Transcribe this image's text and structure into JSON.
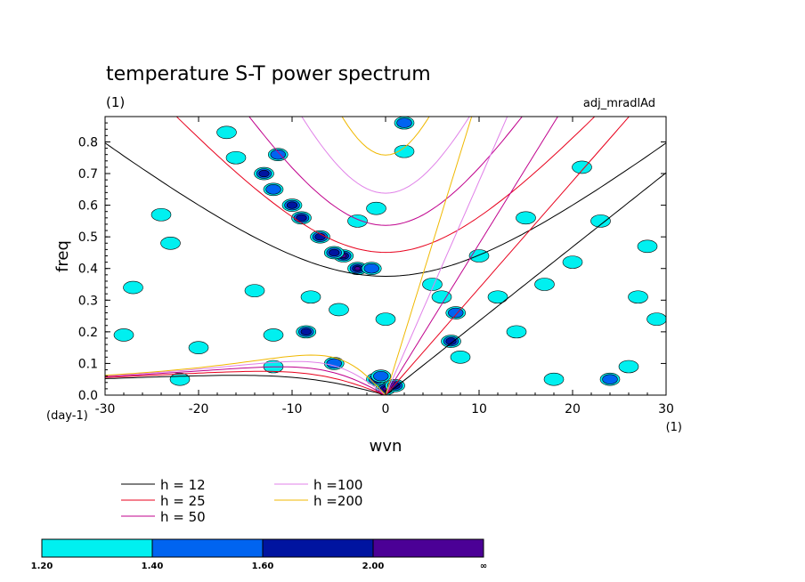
{
  "chart_data": {
    "type": "contour",
    "title": "temperature S-T power spectrum",
    "subtitle_left": "(1)",
    "subtitle_right": "adj_mradlAd",
    "xlabel": "wvn",
    "ylabel": "freq",
    "x_unit": "(1)",
    "y_unit": "(day-1)",
    "xlim": [
      -30,
      30
    ],
    "ylim": [
      0,
      0.88
    ],
    "x_ticks": [
      -30,
      -20,
      -10,
      0,
      10,
      20,
      30
    ],
    "x_tick_labels": [
      "-30",
      "-20",
      "-10",
      "0",
      "10",
      "20",
      "30"
    ],
    "y_ticks": [
      0,
      0.1,
      0.2,
      0.3,
      0.4,
      0.5,
      0.6,
      0.7,
      0.8
    ],
    "y_tick_labels": [
      "0.0",
      "0.1",
      "0.2",
      "0.3",
      "0.4",
      "0.5",
      "0.6",
      "0.7",
      "0.8"
    ],
    "dispersion_curves": [
      {
        "label": "h = 12",
        "h": 12,
        "color": "#000000"
      },
      {
        "label": "h = 25",
        "h": 25,
        "color": "#e8001c"
      },
      {
        "label": "h = 50",
        "h": 50,
        "color": "#c0008c"
      },
      {
        "label": "h =100",
        "h": 100,
        "color": "#e080e8"
      },
      {
        "label": "h =200",
        "h": 200,
        "color": "#f0b800"
      }
    ],
    "colorbar": {
      "levels": [
        "1.20",
        "1.40",
        "1.60",
        "2.00",
        "∞"
      ],
      "colors": [
        "#00f0f0",
        "#0064f0",
        "#0014a0",
        "#4b0096"
      ]
    },
    "contour_blobs": [
      {
        "x": 0,
        "y": 0.02,
        "level": 3
      },
      {
        "x": -1,
        "y": 0.05,
        "level": 2
      },
      {
        "x": 1,
        "y": 0.03,
        "level": 2
      },
      {
        "x": -3,
        "y": 0.4,
        "level": 3
      },
      {
        "x": -4.5,
        "y": 0.44,
        "level": 3
      },
      {
        "x": -5.5,
        "y": 0.45,
        "level": 2
      },
      {
        "x": -7,
        "y": 0.5,
        "level": 2
      },
      {
        "x": -9,
        "y": 0.56,
        "level": 2
      },
      {
        "x": -10,
        "y": 0.6,
        "level": 2
      },
      {
        "x": -12,
        "y": 0.65,
        "level": 1
      },
      {
        "x": -13,
        "y": 0.7,
        "level": 2
      },
      {
        "x": -11.5,
        "y": 0.76,
        "level": 1
      },
      {
        "x": -8.5,
        "y": 0.2,
        "level": 2
      },
      {
        "x": -5.5,
        "y": 0.1,
        "level": 1
      },
      {
        "x": 7,
        "y": 0.17,
        "level": 2
      },
      {
        "x": 7.5,
        "y": 0.26,
        "level": 1
      },
      {
        "x": 2,
        "y": 0.86,
        "level": 1
      },
      {
        "x": -1.5,
        "y": 0.4,
        "level": 1
      },
      {
        "x": -0.5,
        "y": 0.06,
        "level": 1
      },
      {
        "x": -8,
        "y": 0.31,
        "level": 0
      },
      {
        "x": -14,
        "y": 0.33,
        "level": 0
      },
      {
        "x": -16,
        "y": 0.75,
        "level": 0
      },
      {
        "x": -17,
        "y": 0.83,
        "level": 0
      },
      {
        "x": -23,
        "y": 0.48,
        "level": 0
      },
      {
        "x": -28,
        "y": 0.19,
        "level": 0
      },
      {
        "x": -24,
        "y": 0.57,
        "level": 0
      },
      {
        "x": -20,
        "y": 0.15,
        "level": 0
      },
      {
        "x": -12,
        "y": 0.09,
        "level": 0
      },
      {
        "x": -12,
        "y": 0.19,
        "level": 0
      },
      {
        "x": -3,
        "y": 0.55,
        "level": 0
      },
      {
        "x": -1,
        "y": 0.59,
        "level": 0
      },
      {
        "x": 2,
        "y": 0.77,
        "level": 0
      },
      {
        "x": 5,
        "y": 0.35,
        "level": 0
      },
      {
        "x": 6,
        "y": 0.31,
        "level": 0
      },
      {
        "x": 8,
        "y": 0.12,
        "level": 0
      },
      {
        "x": 10,
        "y": 0.44,
        "level": 0
      },
      {
        "x": 12,
        "y": 0.31,
        "level": 0
      },
      {
        "x": 14,
        "y": 0.2,
        "level": 0
      },
      {
        "x": 15,
        "y": 0.56,
        "level": 0
      },
      {
        "x": 17,
        "y": 0.35,
        "level": 0
      },
      {
        "x": 18,
        "y": 0.05,
        "level": 0
      },
      {
        "x": 20,
        "y": 0.42,
        "level": 0
      },
      {
        "x": 21,
        "y": 0.72,
        "level": 0
      },
      {
        "x": 23,
        "y": 0.55,
        "level": 0
      },
      {
        "x": 24,
        "y": 0.05,
        "level": 1
      },
      {
        "x": 26,
        "y": 0.09,
        "level": 0
      },
      {
        "x": 27,
        "y": 0.31,
        "level": 0
      },
      {
        "x": 28,
        "y": 0.47,
        "level": 0
      },
      {
        "x": 29,
        "y": 0.24,
        "level": 0
      },
      {
        "x": -27,
        "y": 0.34,
        "level": 0
      },
      {
        "x": -22,
        "y": 0.05,
        "level": 0
      },
      {
        "x": 0,
        "y": 0.24,
        "level": 0
      },
      {
        "x": -5,
        "y": 0.27,
        "level": 0
      }
    ]
  }
}
